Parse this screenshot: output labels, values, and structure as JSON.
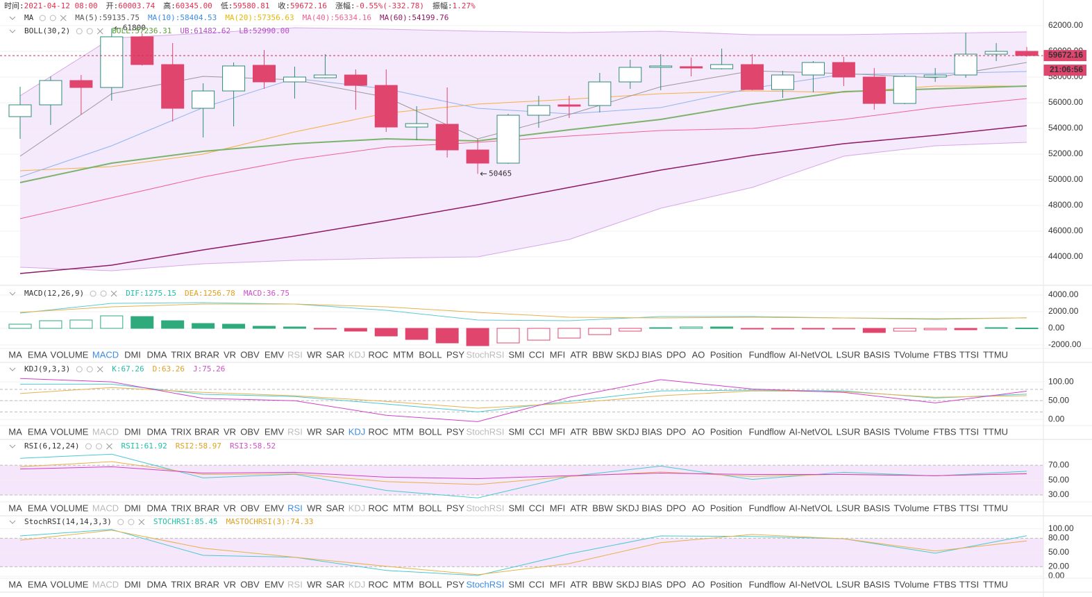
{
  "header": [
    {
      "label": "时间:",
      "value": "2021-04-12 08:00"
    },
    {
      "label": "开:",
      "value": "60003.74"
    },
    {
      "label": "高:",
      "value": "60345.00"
    },
    {
      "label": "低:",
      "value": "59580.81"
    },
    {
      "label": "收:",
      "value": "59672.16"
    },
    {
      "label": "涨幅:",
      "value": "-0.55%(-332.78)"
    },
    {
      "label": "振幅:",
      "value": "1.27%"
    }
  ],
  "tabs": [
    "MA",
    "EMA",
    "VOLUME",
    "MACD",
    "DMI",
    "DMA",
    "TRIX",
    "BRAR",
    "VR",
    "OBV",
    "EMV",
    "RSI",
    "WR",
    "SAR",
    "KDJ",
    "ROC",
    "MTM",
    "BOLL",
    "PSY",
    "StochRSI",
    "SMI",
    "CCI",
    "MFI",
    "ATR",
    "BBW",
    "SKDJ",
    "BIAS",
    "DPO",
    "AO",
    "Position",
    "Fundflow",
    "AI-NetVOL",
    "LSUR",
    "BASIS",
    "TVolume",
    "FTBS",
    "TTSI",
    "TTMU"
  ],
  "line_index": [
    0,
    3,
    6,
    9,
    12,
    15,
    18,
    21,
    24,
    27,
    30,
    33
  ],
  "main": {
    "legend_rows": [
      {
        "title": "MA",
        "items": [
          {
            "text": "MA(5):59135.75",
            "color": "#555555"
          },
          {
            "text": "MA(10):58404.53",
            "color": "#3c8ce7"
          },
          {
            "text": "MA(20):57356.63",
            "color": "#e6b800"
          },
          {
            "text": "MA(40):56334.16",
            "color": "#f06292"
          },
          {
            "text": "MA(60):54199.76",
            "color": "#8e1a63"
          }
        ]
      },
      {
        "title": "BOLL(30,2)",
        "items": [
          {
            "text": "BOLL:57236.31",
            "color": "#5aa03c"
          },
          {
            "text": "UB:61482.62",
            "color": "#b44ec6"
          },
          {
            "text": "LB:52990.00",
            "color": "#b44ec6"
          }
        ]
      }
    ],
    "ylim": [
      41840,
      64000
    ],
    "yticks": [
      {
        "value": 62000,
        "label": "62000.00"
      },
      {
        "value": 60000,
        "label": "60000.00"
      },
      {
        "value": 58000,
        "label": "58000.00"
      },
      {
        "value": 56000,
        "label": "56000.00"
      },
      {
        "value": 54000,
        "label": "54000.00"
      },
      {
        "value": 52000,
        "label": "52000.00"
      },
      {
        "value": 50000,
        "label": "50000.00"
      },
      {
        "value": 48000,
        "label": "48000.00"
      },
      {
        "value": 46000,
        "label": "46000.00"
      },
      {
        "value": 44000,
        "label": "44000.00"
      }
    ],
    "up_color": "#2e8b7a",
    "down_color": "#e0456e",
    "candles": {
      "open": [
        54919,
        55838,
        57730,
        57189,
        61135,
        58973,
        55568,
        56919,
        58919,
        57622,
        57946,
        58162,
        57351,
        54108,
        54325,
        52325,
        51298,
        55027,
        55838,
        55784,
        57622,
        58757,
        58811,
        58649,
        58973,
        57027,
        58162,
        59135,
        58000,
        55946,
        58000,
        58162,
        59784,
        60003.74
      ],
      "high": [
        57243,
        58054,
        58162,
        61800,
        61400,
        60649,
        57514,
        59135,
        60108,
        58811,
        59784,
        58595,
        58595,
        55730,
        57189,
        53190,
        55135,
        56541,
        56541,
        58325,
        59351,
        59784,
        59514,
        60216,
        59784,
        58487,
        59243,
        59568,
        58703,
        58162,
        58703,
        61460,
        60649,
        60345
      ],
      "low": [
        53189,
        54270,
        55081,
        56162,
        58900,
        54541,
        53297,
        54162,
        57081,
        56325,
        57900,
        55460,
        53730,
        53081,
        51730,
        50465,
        51250,
        54054,
        54811,
        55243,
        57081,
        56973,
        58054,
        58595,
        56973,
        56379,
        56811,
        57297,
        55460,
        55892,
        57622,
        57946,
        59243,
        59580.81
      ],
      "close": [
        55838,
        57730,
        57189,
        61135,
        58973,
        55568,
        56919,
        58865,
        57622,
        58000,
        58162,
        57351,
        54108,
        54379,
        52325,
        51298,
        55027,
        55784,
        55730,
        57622,
        58757,
        58865,
        58703,
        58973,
        57027,
        58162,
        59135,
        58000,
        55946,
        58054,
        58162,
        59784,
        60000,
        59672.16
      ]
    },
    "band_fill": "#f3e3fb",
    "ub": {
      "color": "#d7a6e8",
      "values": [
        56541,
        61027,
        61405,
        61838,
        61730,
        61568,
        61459,
        61568,
        61297,
        61297,
        61405,
        61514
      ]
    },
    "lb": {
      "color": "#d7a6e8",
      "values": [
        43189,
        42919,
        43459,
        43730,
        43892,
        44000,
        45351,
        47784,
        49405,
        51838,
        52649,
        52919
      ]
    },
    "lines": [
      {
        "color": "#8e1a63",
        "width": 1.5,
        "values": [
          42703,
          43351,
          44541,
          45622,
          46811,
          48054,
          49405,
          50757,
          51892,
          52811,
          53459,
          54216
        ]
      },
      {
        "color": "#f06292",
        "width": 1,
        "values": [
          46973,
          48595,
          50216,
          51568,
          52541,
          52919,
          53405,
          53838,
          54000,
          54703,
          55622,
          56324
        ]
      },
      {
        "color": "#f5b041",
        "width": 1,
        "values": [
          50703,
          51027,
          52000,
          53730,
          55189,
          55892,
          56270,
          56703,
          56919,
          56811,
          57297,
          57297
        ]
      },
      {
        "color": "#8fb4f0",
        "width": 1,
        "values": [
          50216,
          52649,
          55622,
          57892,
          57081,
          55568,
          55135,
          55622,
          57135,
          58216,
          58270,
          58432
        ]
      },
      {
        "color": "#999999",
        "width": 1,
        "values": [
          51838,
          56703,
          58054,
          57784,
          56432,
          53189,
          55081,
          57243,
          58486,
          58270,
          57946,
          59135
        ]
      },
      {
        "color": "#7cb36a",
        "width": 2,
        "values": [
          49784,
          51297,
          52216,
          52811,
          53189,
          53027,
          53892,
          54703,
          55892,
          56865,
          57081,
          57297
        ]
      }
    ],
    "last_price": 59672.16,
    "time_label": "21:06:56",
    "annotations": [
      {
        "value": 61800,
        "candle": 3
      },
      {
        "value": 50465,
        "candle": 15
      }
    ]
  },
  "panels": [
    {
      "legend_rows": [
        {
          "title": "MACD(12,26,9)",
          "items": [
            {
              "text": "DIF:1275.15",
              "color": "#1fbfa8"
            },
            {
              "text": "DEA:1256.78",
              "color": "#e0a020"
            },
            {
              "text": "MACD:36.75",
              "color": "#d04fc8"
            }
          ]
        }
      ],
      "ylim": [
        -2250,
        5000
      ],
      "yticks": [
        {
          "value": 4000,
          "label": "4000.00"
        },
        {
          "value": 2000,
          "label": "2000.00"
        },
        {
          "value": 0,
          "label": "0.00"
        },
        {
          "value": -2000,
          "label": "-2000.00"
        }
      ],
      "active_tab": 3,
      "histogram": {
        "up_color": "#2eaa7c",
        "down_color": "#e0456e",
        "values": [
          500,
          917,
          1000,
          1500,
          1417,
          917,
          583,
          500,
          250,
          167,
          -83,
          -333,
          -917,
          -1333,
          -1750,
          -2083,
          -1750,
          -1417,
          -1167,
          -750,
          -333,
          83,
          167,
          167,
          -83,
          -83,
          -83,
          -83,
          -500,
          -333,
          -167,
          -167,
          83,
          36.75
        ]
      },
      "lines": [
        {
          "color": "#5ccad6",
          "width": 1,
          "values": [
            1833,
            3000,
            3083,
            2917,
            2167,
            1000,
            917,
            1417,
            1417,
            1250,
            1083,
            1275.15
          ]
        },
        {
          "color": "#e8b04a",
          "width": 1,
          "values": [
            1917,
            2583,
            2917,
            2917,
            2583,
            1917,
            1333,
            1250,
            1333,
            1250,
            1167,
            1256.78
          ]
        }
      ]
    },
    {
      "legend_rows": [
        {
          "title": "KDJ(9,3,3)",
          "items": [
            {
              "text": "K:67.26",
              "color": "#1fbfa8"
            },
            {
              "text": "D:63.26",
              "color": "#e0a020"
            },
            {
              "text": "J:75.26",
              "color": "#d04fc8"
            }
          ]
        }
      ],
      "ylim": [
        -20,
        152
      ],
      "yticks": [
        {
          "value": 100,
          "label": "100.00"
        },
        {
          "value": 50,
          "label": "50.00"
        },
        {
          "value": 0,
          "label": "0.00"
        }
      ],
      "dashed": [
        80,
        50,
        20
      ],
      "active_tab": 14,
      "lines": [
        {
          "color": "#48c9d0",
          "width": 1,
          "values": [
            94,
            94,
            67,
            61,
            41,
            20,
            48,
            76,
            78,
            76,
            57,
            67.26
          ]
        },
        {
          "color": "#e8b04a",
          "width": 1,
          "values": [
            69,
            85,
            72,
            63,
            48,
            30,
            43,
            63,
            76,
            74,
            59,
            63.26
          ]
        },
        {
          "color": "#d040c8",
          "width": 1,
          "values": [
            109,
            100,
            56,
            50,
            11,
            -6,
            59,
            106,
            81,
            72,
            44,
            75.26
          ]
        }
      ]
    },
    {
      "legend_rows": [
        {
          "title": "RSI(6,12,24)",
          "items": [
            {
              "text": "RSI1:61.92",
              "color": "#1fbfa8"
            },
            {
              "text": "RSI2:58.97",
              "color": "#e0a020"
            },
            {
              "text": "RSI3:58.52",
              "color": "#d04fc8"
            }
          ]
        }
      ],
      "ylim": [
        21.5,
        105
      ],
      "yticks": [
        {
          "value": 70,
          "label": "70.00"
        },
        {
          "value": 50,
          "label": "50.00"
        },
        {
          "value": 30,
          "label": "30.00"
        }
      ],
      "band": [
        30,
        70
      ],
      "band_color": "#f5e6fb",
      "dashed": [
        70,
        30
      ],
      "active_tab": 11,
      "lines": [
        {
          "color": "#48c9d0",
          "width": 1,
          "values": [
            79.5,
            85,
            53,
            58,
            36,
            26,
            55,
            69,
            51,
            60.5,
            55.7,
            61.92
          ]
        },
        {
          "color": "#e8b04a",
          "width": 1,
          "values": [
            68,
            75,
            57.6,
            58.6,
            48,
            44,
            55,
            61,
            55,
            58,
            56,
            58.97
          ]
        },
        {
          "color": "#d040c8",
          "width": 1,
          "values": [
            65,
            68,
            59.5,
            60.5,
            54,
            52,
            56,
            59.5,
            57.6,
            57.6,
            56,
            58.52
          ]
        }
      ]
    },
    {
      "legend_rows": [
        {
          "title": "StochRSI(14,14,3,3)",
          "items": [
            {
              "text": "STOCHRSI:85.45",
              "color": "#1fbfa8"
            },
            {
              "text": "MASTOCHRSI(3):74.33",
              "color": "#e0a020"
            }
          ]
        }
      ],
      "ylim": [
        -4.4,
        126
      ],
      "yticks": [
        {
          "value": 100,
          "label": "100.00"
        },
        {
          "value": 80,
          "label": "80.00"
        },
        {
          "value": 50,
          "label": "50.00"
        },
        {
          "value": 20,
          "label": "20.00"
        },
        {
          "value": 0,
          "label": "0.00"
        }
      ],
      "band": [
        20,
        80
      ],
      "band_color": "#f5e6fb",
      "dashed": [
        80,
        20
      ],
      "active_tab": 19,
      "lines": [
        {
          "color": "#48c9d0",
          "width": 1,
          "values": [
            85,
            98.5,
            44,
            40,
            12,
            1.5,
            47,
            85,
            84,
            79,
            48.5,
            85.45
          ]
        },
        {
          "color": "#e8b04a",
          "width": 1,
          "values": [
            76,
            97,
            59,
            40,
            21,
            3,
            26.5,
            70.6,
            88,
            79,
            53,
            74.33
          ]
        }
      ]
    }
  ]
}
